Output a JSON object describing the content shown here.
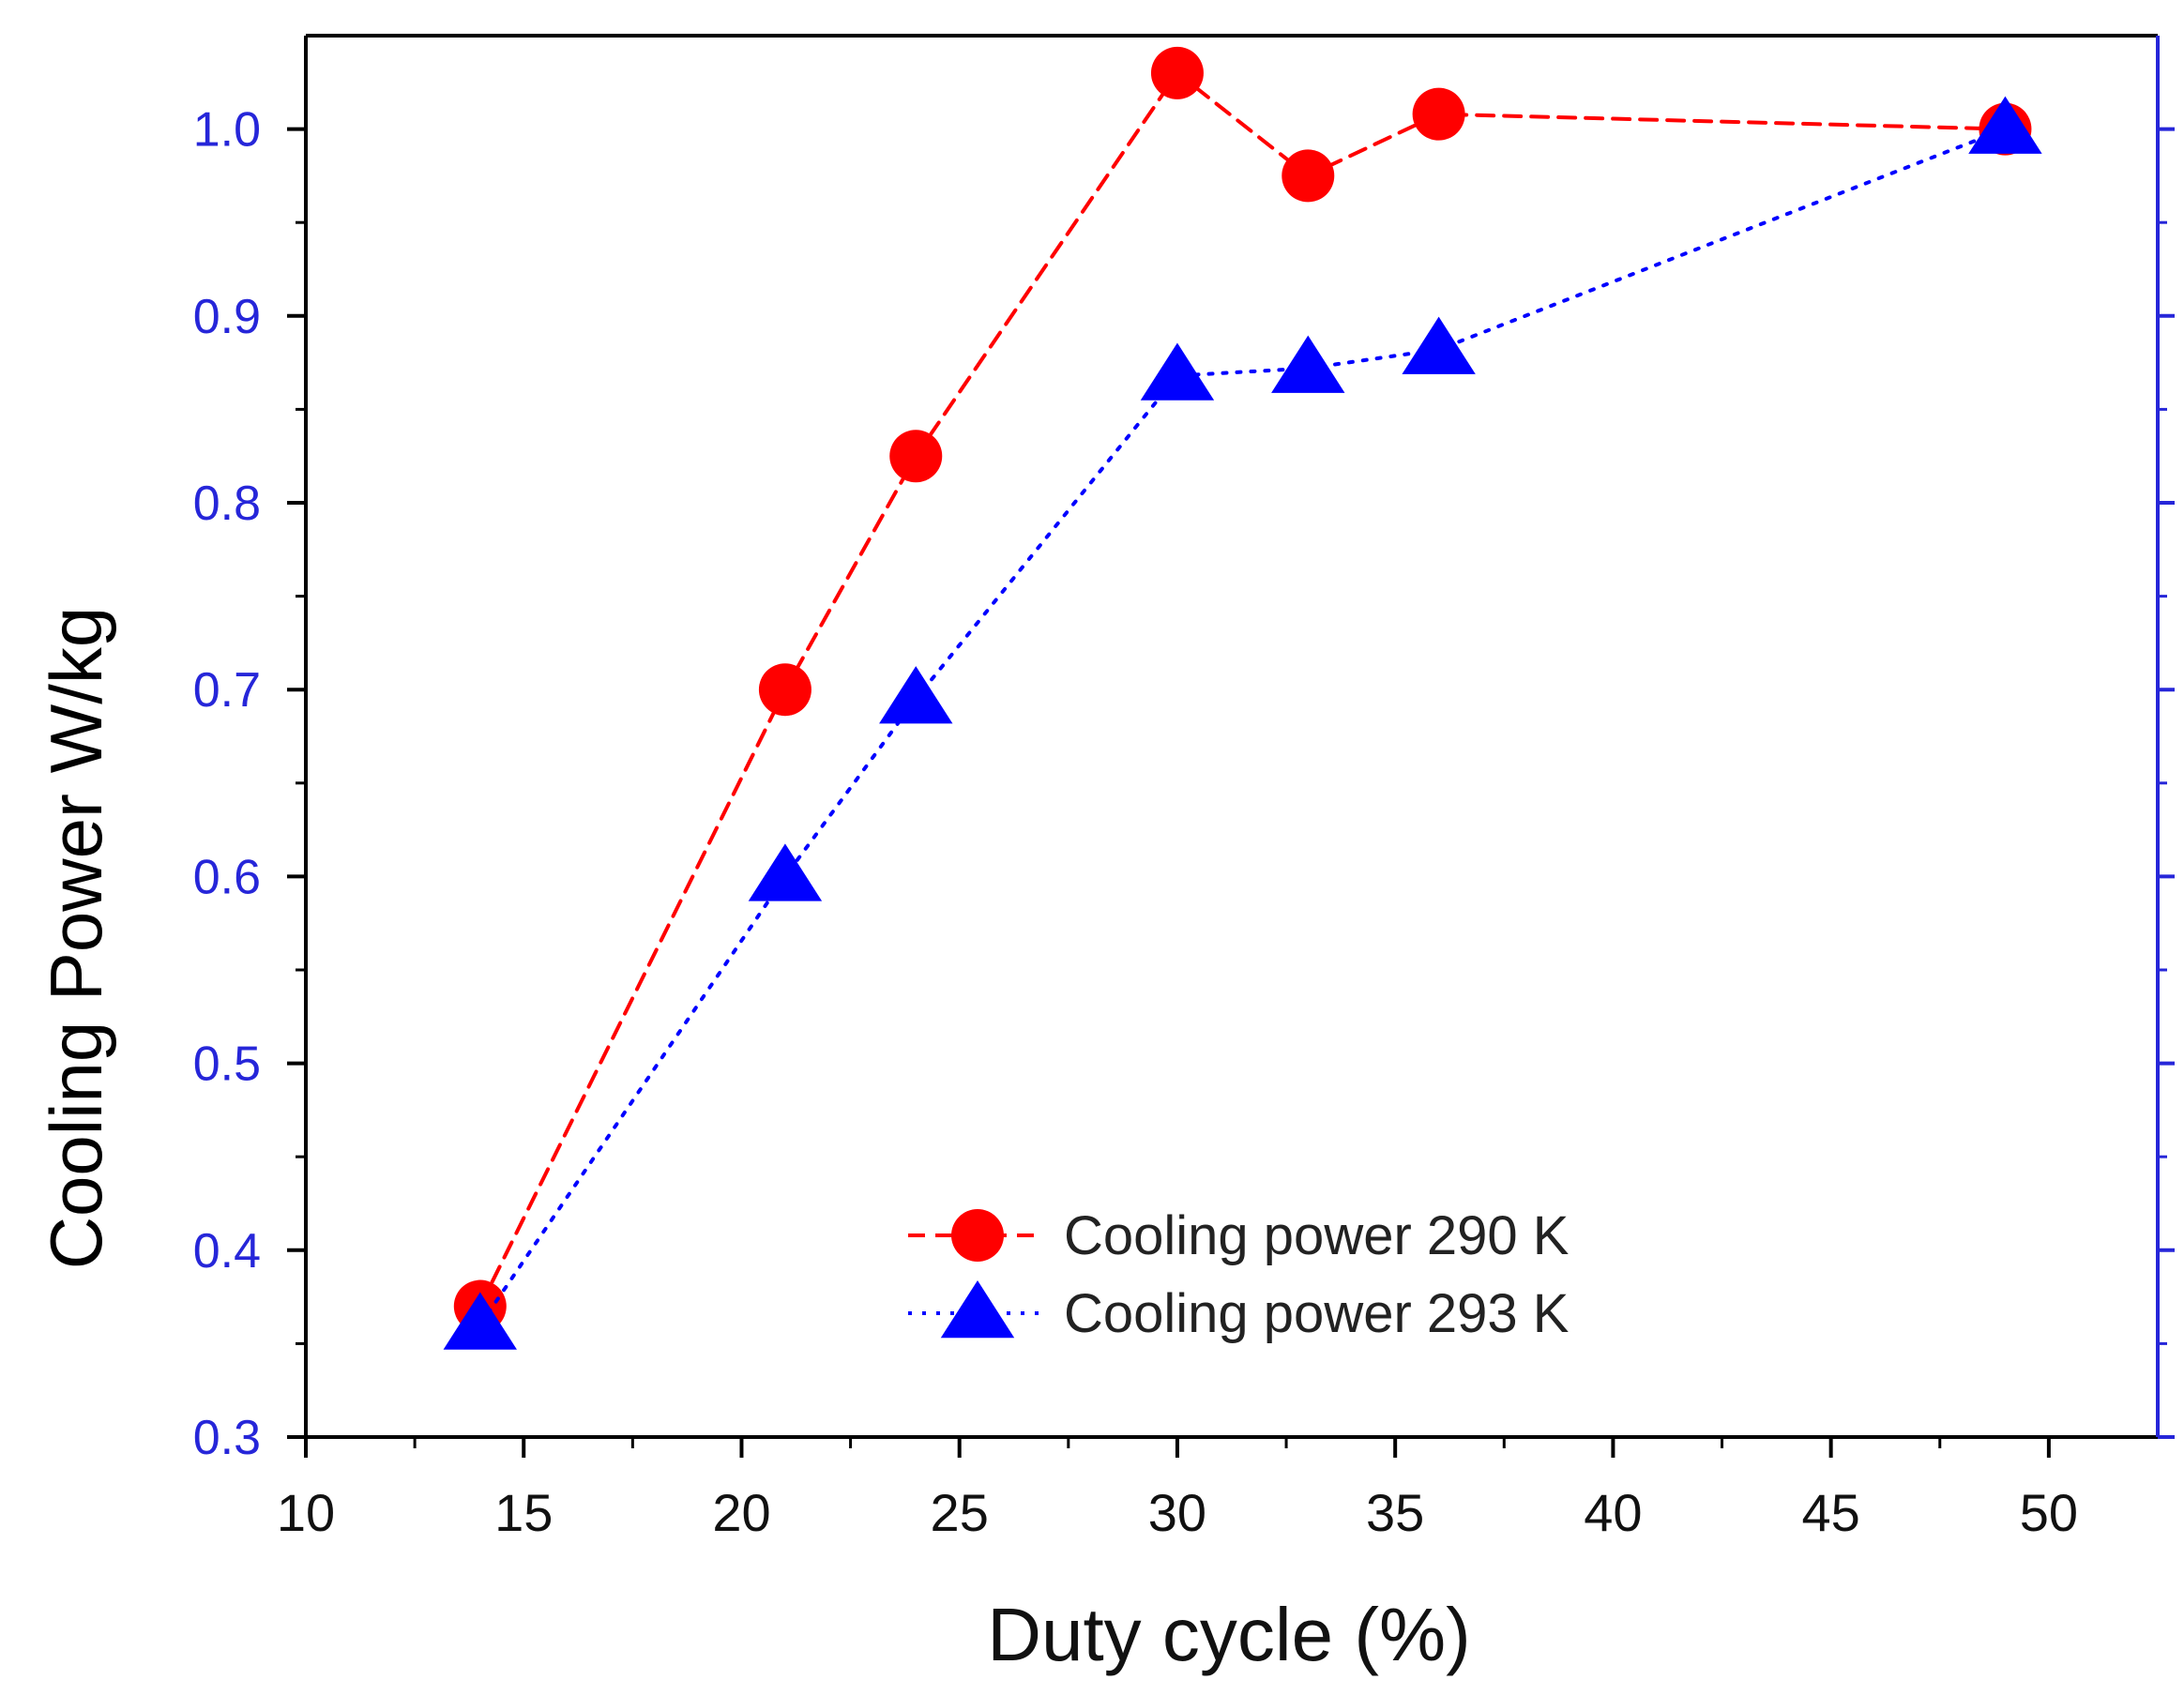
{
  "chart_data": {
    "type": "line",
    "title": "",
    "xlabel": "Duty cycle (%)",
    "ylabel": "Cooling Power W/kg",
    "xlim": [
      10,
      52.5
    ],
    "ylim": [
      0.3,
      1.05
    ],
    "xticks": [
      "10",
      "15",
      "20",
      "25",
      "30",
      "35",
      "40",
      "45",
      "50"
    ],
    "yticks": [
      "0.3",
      "0.4",
      "0.5",
      "0.6",
      "0.7",
      "0.8",
      "0.9",
      "1.0"
    ],
    "grid": false,
    "legend_position": "bottom-center",
    "series": [
      {
        "name": "Cooling power 290 K",
        "marker": "circle",
        "line_style": "dashed",
        "color": "#ff0000",
        "x": [
          14,
          21,
          24,
          30,
          33,
          36,
          49
        ],
        "y": [
          0.37,
          0.7,
          0.825,
          1.03,
          0.975,
          1.008,
          1.0
        ]
      },
      {
        "name": "Cooling power 293 K",
        "marker": "triangle",
        "line_style": "dotted",
        "color": "#0000ff",
        "x": [
          14,
          21,
          24,
          30,
          33,
          36,
          49
        ],
        "y": [
          0.36,
          0.6,
          0.695,
          0.868,
          0.872,
          0.882,
          1.0
        ]
      }
    ]
  },
  "colors": {
    "y_tick_color": "#2626d9",
    "right_axis_color": "#2626d9",
    "axis_color": "#000000"
  }
}
